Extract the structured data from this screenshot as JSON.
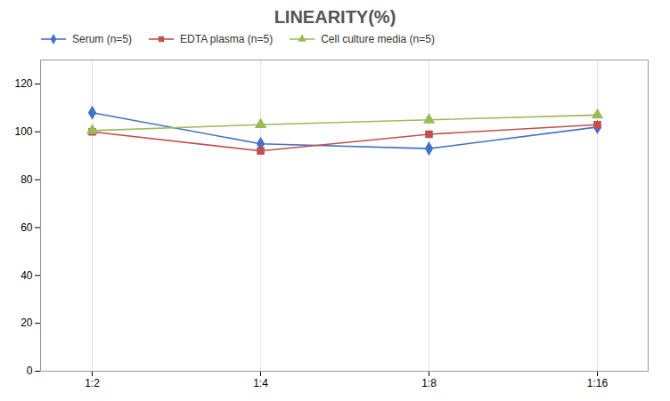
{
  "chart_data": {
    "type": "line",
    "title": "LINEARITY(%)",
    "categories": [
      "1:2",
      "1:4",
      "1:8",
      "1:16"
    ],
    "series": [
      {
        "name": "Serum (n=5)",
        "color": "#4472C4",
        "marker": "diamond",
        "values": [
          108,
          95,
          93,
          102
        ]
      },
      {
        "name": "EDTA plasma (n=5)",
        "color": "#C0504D",
        "marker": "square",
        "values": [
          100,
          92,
          99,
          103
        ]
      },
      {
        "name": "Cell culture media (n=5)",
        "color": "#9BBB59",
        "marker": "triangle",
        "values": [
          100.5,
          103,
          105,
          107
        ]
      }
    ],
    "ylim": [
      0,
      130
    ],
    "yticks": [
      0,
      20,
      40,
      60,
      80,
      100,
      120
    ],
    "grid": "x",
    "legend": "top left"
  }
}
